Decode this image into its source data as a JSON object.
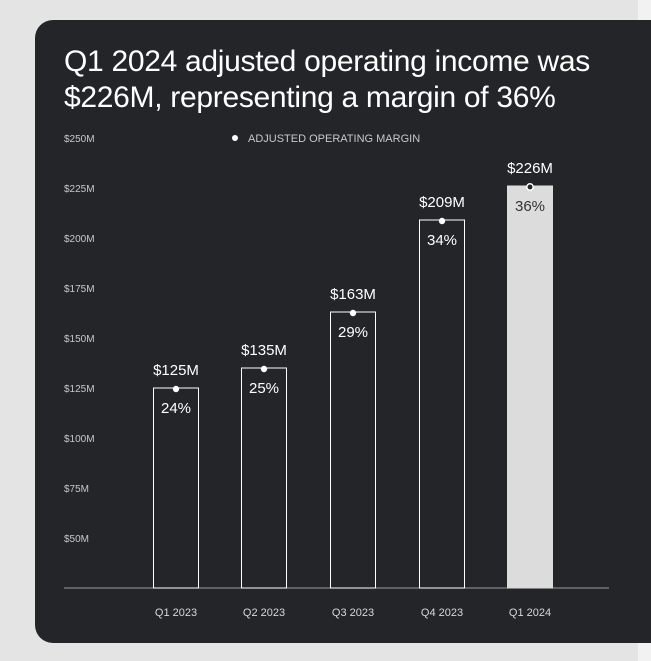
{
  "headline": {
    "line1": "Q1 2024 adjusted operating income was",
    "line2": "$226M, representing a margin of 36%"
  },
  "colors": {
    "card_background": "#232528",
    "bar_outline": "#ffffff",
    "highlight_bar_fill": "#dcdcdc",
    "text": "#ffffff"
  },
  "chart_data": {
    "type": "bar",
    "title": "",
    "xlabel": "",
    "ylabel": "",
    "ylim": [
      25,
      250
    ],
    "y_ticks": [
      "$50M",
      "$75M",
      "$100M",
      "$125M",
      "$150M",
      "$175M",
      "$200M",
      "$225M",
      "$250M"
    ],
    "y_tick_values": [
      50,
      75,
      100,
      125,
      150,
      175,
      200,
      225,
      250
    ],
    "categories": [
      "Q1 2023",
      "Q2 2023",
      "Q3 2023",
      "Q4 2023",
      "Q1 2024"
    ],
    "values": [
      125,
      135,
      163,
      209,
      226
    ],
    "value_labels": [
      "$125M",
      "$135M",
      "$163M",
      "$209M",
      "$226M"
    ],
    "margins": [
      24,
      25,
      29,
      34,
      36
    ],
    "margin_labels": [
      "24%",
      "25%",
      "29%",
      "34%",
      "36%"
    ],
    "highlighted_category": "Q1 2024",
    "legend": {
      "label": "ADJUSTED OPERATING MARGIN",
      "position": "top-center"
    },
    "grid": false
  }
}
